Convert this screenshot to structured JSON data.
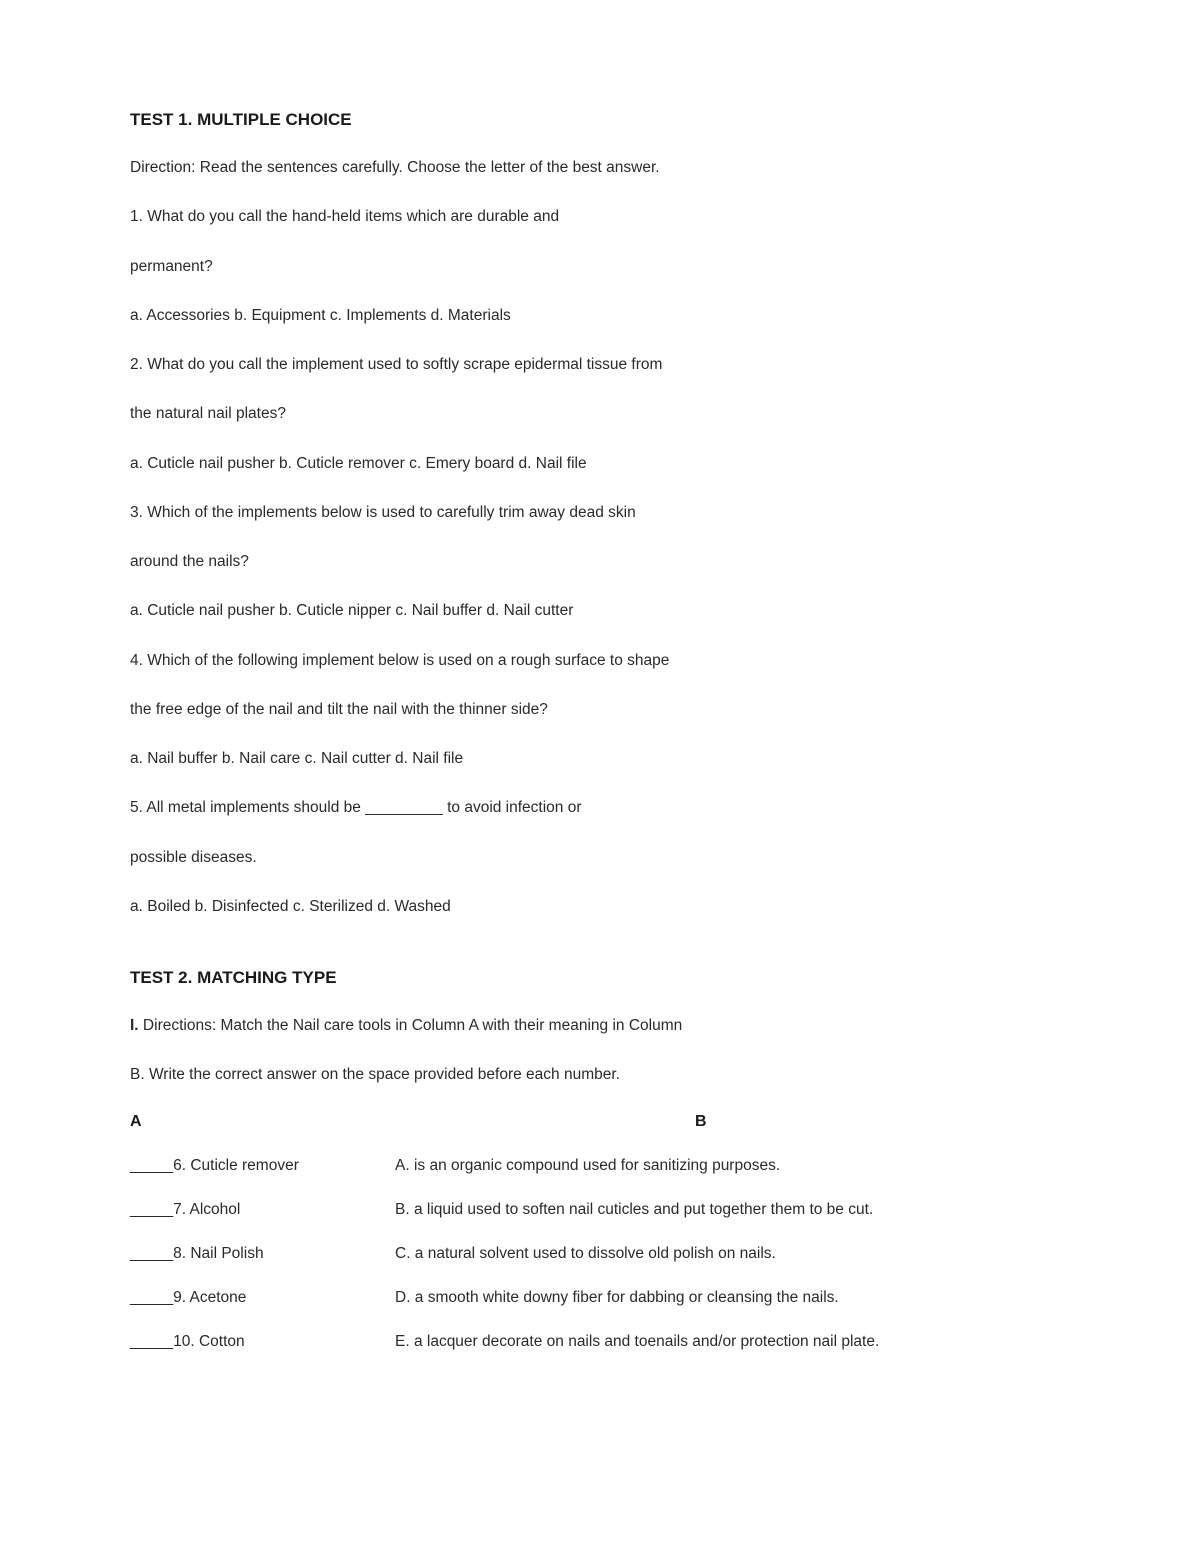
{
  "test1": {
    "title": "TEST 1. MULTIPLE CHOICE",
    "direction": "Direction: Read the sentences carefully. Choose the letter of the best answer.",
    "q1_line1": "1. What do you call the hand-held items which are durable and",
    "q1_line2": "permanent?",
    "q1_choices": "a. Accessories b. Equipment c. Implements d. Materials",
    "q2_line1": "2. What do you call the implement used to softly scrape epidermal tissue from",
    "q2_line2": "the natural nail plates?",
    "q2_choices": "a. Cuticle nail pusher b. Cuticle remover  c. Emery board d. Nail file",
    "q3_line1": "3. Which of the implements below is used to carefully trim away dead skin",
    "q3_line2": "around the nails?",
    "q3_choices": "a. Cuticle nail pusher b. Cuticle nipper c. Nail buffer d. Nail cutter",
    "q4_line1": "4. Which of the following implement below is used on a rough surface to shape",
    "q4_line2": "the free edge of the nail and tilt the nail with the thinner side?",
    "q4_choices": "a. Nail buffer b. Nail care c. Nail cutter d. Nail file",
    "q5_line1": "5. All metal implements should be _________ to avoid infection or",
    "q5_line2": "possible diseases.",
    "q5_choices": "a. Boiled b. Disinfected c. Sterilized d. Washed"
  },
  "test2": {
    "title": "TEST 2. MATCHING TYPE",
    "direction_prefix": "I.",
    "direction_line1": " Directions: Match the Nail care tools in Column A with their meaning in Column",
    "direction_line2": "B. Write the correct answer on the space provided before each number.",
    "header_a": "A",
    "header_b": "B",
    "rows": [
      {
        "a": "_____6. Cuticle remover",
        "b": "A. is an organic compound used for sanitizing purposes."
      },
      {
        "a": "_____7. Alcohol",
        "b": "B. a liquid used to soften nail cuticles and put together them to be cut."
      },
      {
        "a": "_____8. Nail Polish",
        "b": "C. a natural solvent used to dissolve old polish on nails."
      },
      {
        "a": "_____9. Acetone",
        "b": "D. a smooth white downy fiber for dabbing or cleansing the nails."
      },
      {
        "a": "_____10. Cotton",
        "b": "E. a lacquer decorate on nails and toenails and/or protection nail plate."
      }
    ]
  }
}
